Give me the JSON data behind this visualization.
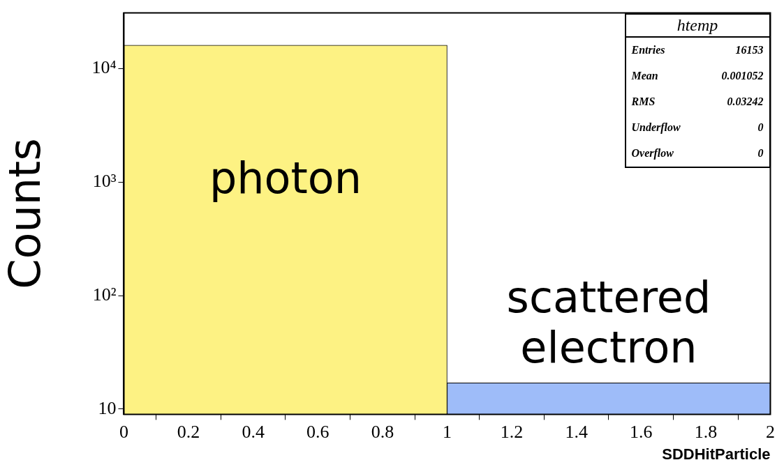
{
  "chart_data": {
    "type": "histogram",
    "xlabel": "SDDHitParticle",
    "ylabel": "Counts",
    "bins": [
      0,
      1,
      2
    ],
    "values": [
      16136,
      17
    ],
    "colors": [
      "#fdf283",
      "#9ebcf9"
    ],
    "log": "y",
    "xlim": [
      0,
      2
    ],
    "ylim": [
      9,
      31000
    ],
    "xticks": [
      0,
      0.2,
      0.4,
      0.6,
      0.8,
      1,
      1.2,
      1.4,
      1.6,
      1.8,
      2
    ],
    "yticks": [
      10,
      {
        "value": 100,
        "label": "10²"
      },
      {
        "value": 1000,
        "label": "10³"
      },
      {
        "value": 10000,
        "label": "10⁴"
      }
    ],
    "grid": false,
    "legend": false,
    "annotations": [
      "photon",
      "scattered electron",
      "htemp",
      "Entries",
      "16153",
      "Mean",
      "0.001052",
      "RMS",
      "0.03242",
      "Underflow",
      "0",
      "Overflow",
      "0"
    ]
  }
}
